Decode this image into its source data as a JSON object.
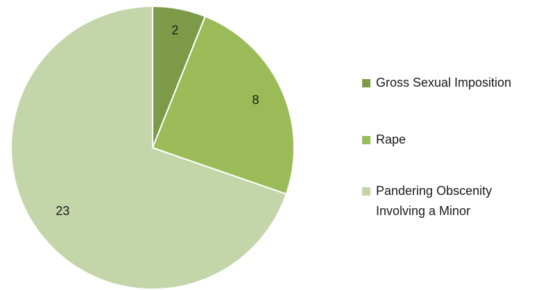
{
  "chart_data": {
    "type": "pie",
    "title": "",
    "start": "top",
    "direction": "clockwise",
    "legend_position": "right",
    "slices": [
      {
        "label": "Gross Sexual Imposition",
        "value": 2,
        "color": "#7d9a48"
      },
      {
        "label": "Rape",
        "value": 8,
        "color": "#9bbb59"
      },
      {
        "label": "Pandering Obscenity Involving a Minor",
        "value": 23,
        "color": "#c4d6a9"
      }
    ],
    "legend": [
      {
        "lines": [
          "Gross Sexual Imposition"
        ]
      },
      {
        "lines": [
          "Rape"
        ]
      },
      {
        "lines": [
          "Pandering Obscenity",
          "Involving a Minor"
        ]
      }
    ],
    "stroke_color": "#ffffff"
  }
}
